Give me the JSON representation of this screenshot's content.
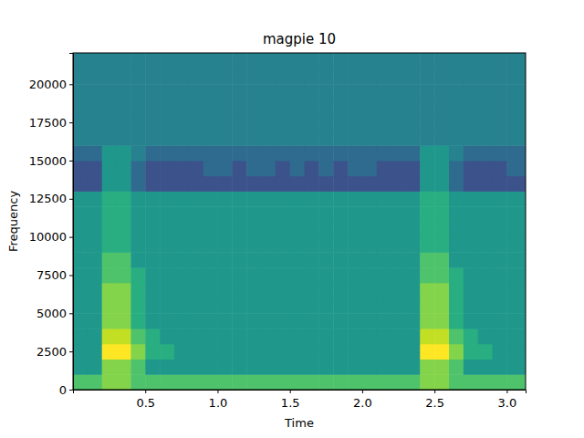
{
  "chart_data": {
    "type": "heatmap",
    "title": "magpie 10",
    "x_label": "Time",
    "y_label": "Frequency",
    "color": "viridis",
    "x": [
      0.05,
      0.15,
      0.25,
      0.35,
      0.45,
      0.55,
      0.65,
      0.75,
      0.85,
      0.95,
      1.05,
      1.15,
      1.25,
      1.35,
      1.45,
      1.55,
      1.65,
      1.75,
      1.85,
      1.95,
      2.05,
      2.15,
      2.25,
      2.35,
      2.45,
      2.55,
      2.65,
      2.75,
      2.85,
      2.95,
      3.05
    ],
    "y": [
      500,
      1500,
      2500,
      3500,
      4500,
      5500,
      6500,
      7500,
      8500,
      9500,
      10500,
      11500,
      12500,
      13500,
      14500,
      15500,
      16500,
      17500,
      18500,
      19500,
      20500,
      21500
    ],
    "values": [
      [
        7,
        7,
        8,
        8,
        7,
        7,
        7,
        7,
        7,
        7,
        7,
        7,
        7,
        7,
        7,
        7,
        7,
        7,
        7,
        7,
        7,
        7,
        7,
        7,
        8,
        8,
        7,
        7,
        7,
        7,
        7
      ],
      [
        5,
        5,
        8,
        8,
        7,
        5,
        5,
        5,
        5,
        5,
        5,
        5,
        5,
        5,
        5,
        5,
        5,
        5,
        5,
        5,
        5,
        5,
        5,
        5,
        8,
        8,
        7,
        5,
        5,
        5,
        5
      ],
      [
        5,
        5,
        10,
        10,
        8,
        6,
        6,
        5,
        5,
        5,
        5,
        5,
        5,
        5,
        5,
        5,
        5,
        5,
        5,
        5,
        5,
        5,
        5,
        5,
        10,
        10,
        8,
        6,
        6,
        5,
        5
      ],
      [
        5,
        5,
        9,
        9,
        7,
        6,
        5,
        5,
        5,
        5,
        5,
        5,
        5,
        5,
        5,
        5,
        5,
        5,
        5,
        5,
        5,
        5,
        5,
        5,
        9,
        9,
        7,
        6,
        5,
        5,
        5
      ],
      [
        5,
        5,
        8,
        8,
        6,
        5,
        5,
        5,
        5,
        5,
        5,
        5,
        5,
        5,
        5,
        5,
        5,
        5,
        5,
        5,
        5,
        5,
        5,
        5,
        8,
        8,
        6,
        5,
        5,
        5,
        5
      ],
      [
        5,
        5,
        8,
        8,
        6,
        5,
        5,
        5,
        5,
        5,
        5,
        5,
        5,
        5,
        5,
        5,
        5,
        5,
        5,
        5,
        5,
        5,
        5,
        5,
        8,
        8,
        6,
        5,
        5,
        5,
        5
      ],
      [
        5,
        5,
        8,
        8,
        6,
        5,
        5,
        5,
        5,
        5,
        5,
        5,
        5,
        5,
        5,
        5,
        5,
        5,
        5,
        5,
        5,
        5,
        5,
        5,
        8,
        8,
        6,
        5,
        5,
        5,
        5
      ],
      [
        5,
        5,
        7,
        7,
        6,
        5,
        5,
        5,
        5,
        5,
        5,
        5,
        5,
        5,
        5,
        5,
        5,
        5,
        5,
        5,
        5,
        5,
        5,
        5,
        7,
        7,
        6,
        5,
        5,
        5,
        5
      ],
      [
        5,
        5,
        7,
        7,
        5,
        5,
        5,
        5,
        5,
        5,
        5,
        5,
        5,
        5,
        5,
        5,
        5,
        5,
        5,
        5,
        5,
        5,
        5,
        5,
        7,
        7,
        5,
        5,
        5,
        5,
        5
      ],
      [
        5,
        5,
        6,
        6,
        5,
        5,
        5,
        5,
        5,
        5,
        5,
        5,
        5,
        5,
        5,
        5,
        5,
        5,
        5,
        5,
        5,
        5,
        5,
        5,
        6,
        6,
        5,
        5,
        5,
        5,
        5
      ],
      [
        5,
        5,
        6,
        6,
        5,
        5,
        5,
        5,
        5,
        5,
        5,
        5,
        5,
        5,
        5,
        5,
        5,
        5,
        5,
        5,
        5,
        5,
        5,
        5,
        6,
        6,
        5,
        5,
        5,
        5,
        5
      ],
      [
        5,
        5,
        6,
        6,
        5,
        5,
        5,
        5,
        5,
        5,
        5,
        5,
        5,
        5,
        5,
        5,
        5,
        5,
        5,
        5,
        5,
        5,
        5,
        5,
        6,
        6,
        5,
        5,
        5,
        5,
        5
      ],
      [
        5,
        5,
        6,
        6,
        5,
        5,
        5,
        5,
        5,
        5,
        5,
        5,
        5,
        5,
        5,
        5,
        5,
        5,
        5,
        5,
        5,
        5,
        5,
        5,
        6,
        6,
        5,
        5,
        5,
        5,
        5
      ],
      [
        2,
        2,
        5,
        5,
        3,
        2,
        2,
        2,
        2,
        2,
        2,
        2,
        2,
        2,
        2,
        2,
        2,
        2,
        2,
        2,
        2,
        2,
        2,
        2,
        5,
        5,
        3,
        2,
        2,
        2,
        2
      ],
      [
        2,
        2,
        5,
        5,
        3,
        2,
        2,
        2,
        2,
        3,
        3,
        2,
        3,
        3,
        2,
        3,
        2,
        3,
        2,
        3,
        3,
        2,
        2,
        2,
        5,
        5,
        3,
        2,
        2,
        2,
        3
      ],
      [
        3,
        3,
        5,
        5,
        4,
        3,
        3,
        3,
        3,
        3,
        3,
        3,
        3,
        3,
        3,
        3,
        3,
        3,
        3,
        3,
        3,
        3,
        3,
        3,
        5,
        5,
        4,
        3,
        3,
        3,
        3
      ],
      [
        4,
        4,
        4,
        4,
        4,
        4,
        4,
        4,
        4,
        4,
        4,
        4,
        4,
        4,
        4,
        4,
        4,
        4,
        4,
        4,
        4,
        4,
        4,
        4,
        4,
        4,
        4,
        4,
        4,
        4,
        4
      ],
      [
        4,
        4,
        4,
        4,
        4,
        4,
        4,
        4,
        4,
        4,
        4,
        4,
        4,
        4,
        4,
        4,
        4,
        4,
        4,
        4,
        4,
        4,
        4,
        4,
        4,
        4,
        4,
        4,
        4,
        4,
        4
      ],
      [
        4,
        4,
        4,
        4,
        4,
        4,
        4,
        4,
        4,
        4,
        4,
        4,
        4,
        4,
        4,
        4,
        4,
        4,
        4,
        4,
        4,
        4,
        4,
        4,
        4,
        4,
        4,
        4,
        4,
        4,
        4
      ],
      [
        4,
        4,
        4,
        4,
        4,
        4,
        4,
        4,
        4,
        4,
        4,
        4,
        4,
        4,
        4,
        4,
        4,
        4,
        4,
        4,
        4,
        4,
        4,
        4,
        4,
        4,
        4,
        4,
        4,
        4,
        4
      ],
      [
        4,
        4,
        4,
        4,
        4,
        4,
        4,
        4,
        4,
        4,
        4,
        4,
        4,
        4,
        4,
        4,
        4,
        4,
        4,
        4,
        4,
        4,
        4,
        4,
        4,
        4,
        4,
        4,
        4,
        4,
        4
      ],
      [
        4,
        4,
        4,
        4,
        4,
        4,
        4,
        4,
        4,
        4,
        4,
        4,
        4,
        4,
        4,
        4,
        4,
        4,
        4,
        4,
        4,
        4,
        4,
        4,
        4,
        4,
        4,
        4,
        4,
        4,
        4
      ]
    ],
    "xlim": [
      0,
      3.13
    ],
    "ylim": [
      0,
      22050
    ],
    "xticks": [
      0.5,
      {
        "value": 1,
        "label": "1.0"
      },
      1.5,
      {
        "value": 2,
        "label": "2.0"
      },
      2.5,
      {
        "value": 3,
        "label": "3.0"
      }
    ],
    "yticks": [
      0,
      2500,
      5000,
      7500,
      10000,
      12500,
      15000,
      17500,
      20000
    ]
  }
}
